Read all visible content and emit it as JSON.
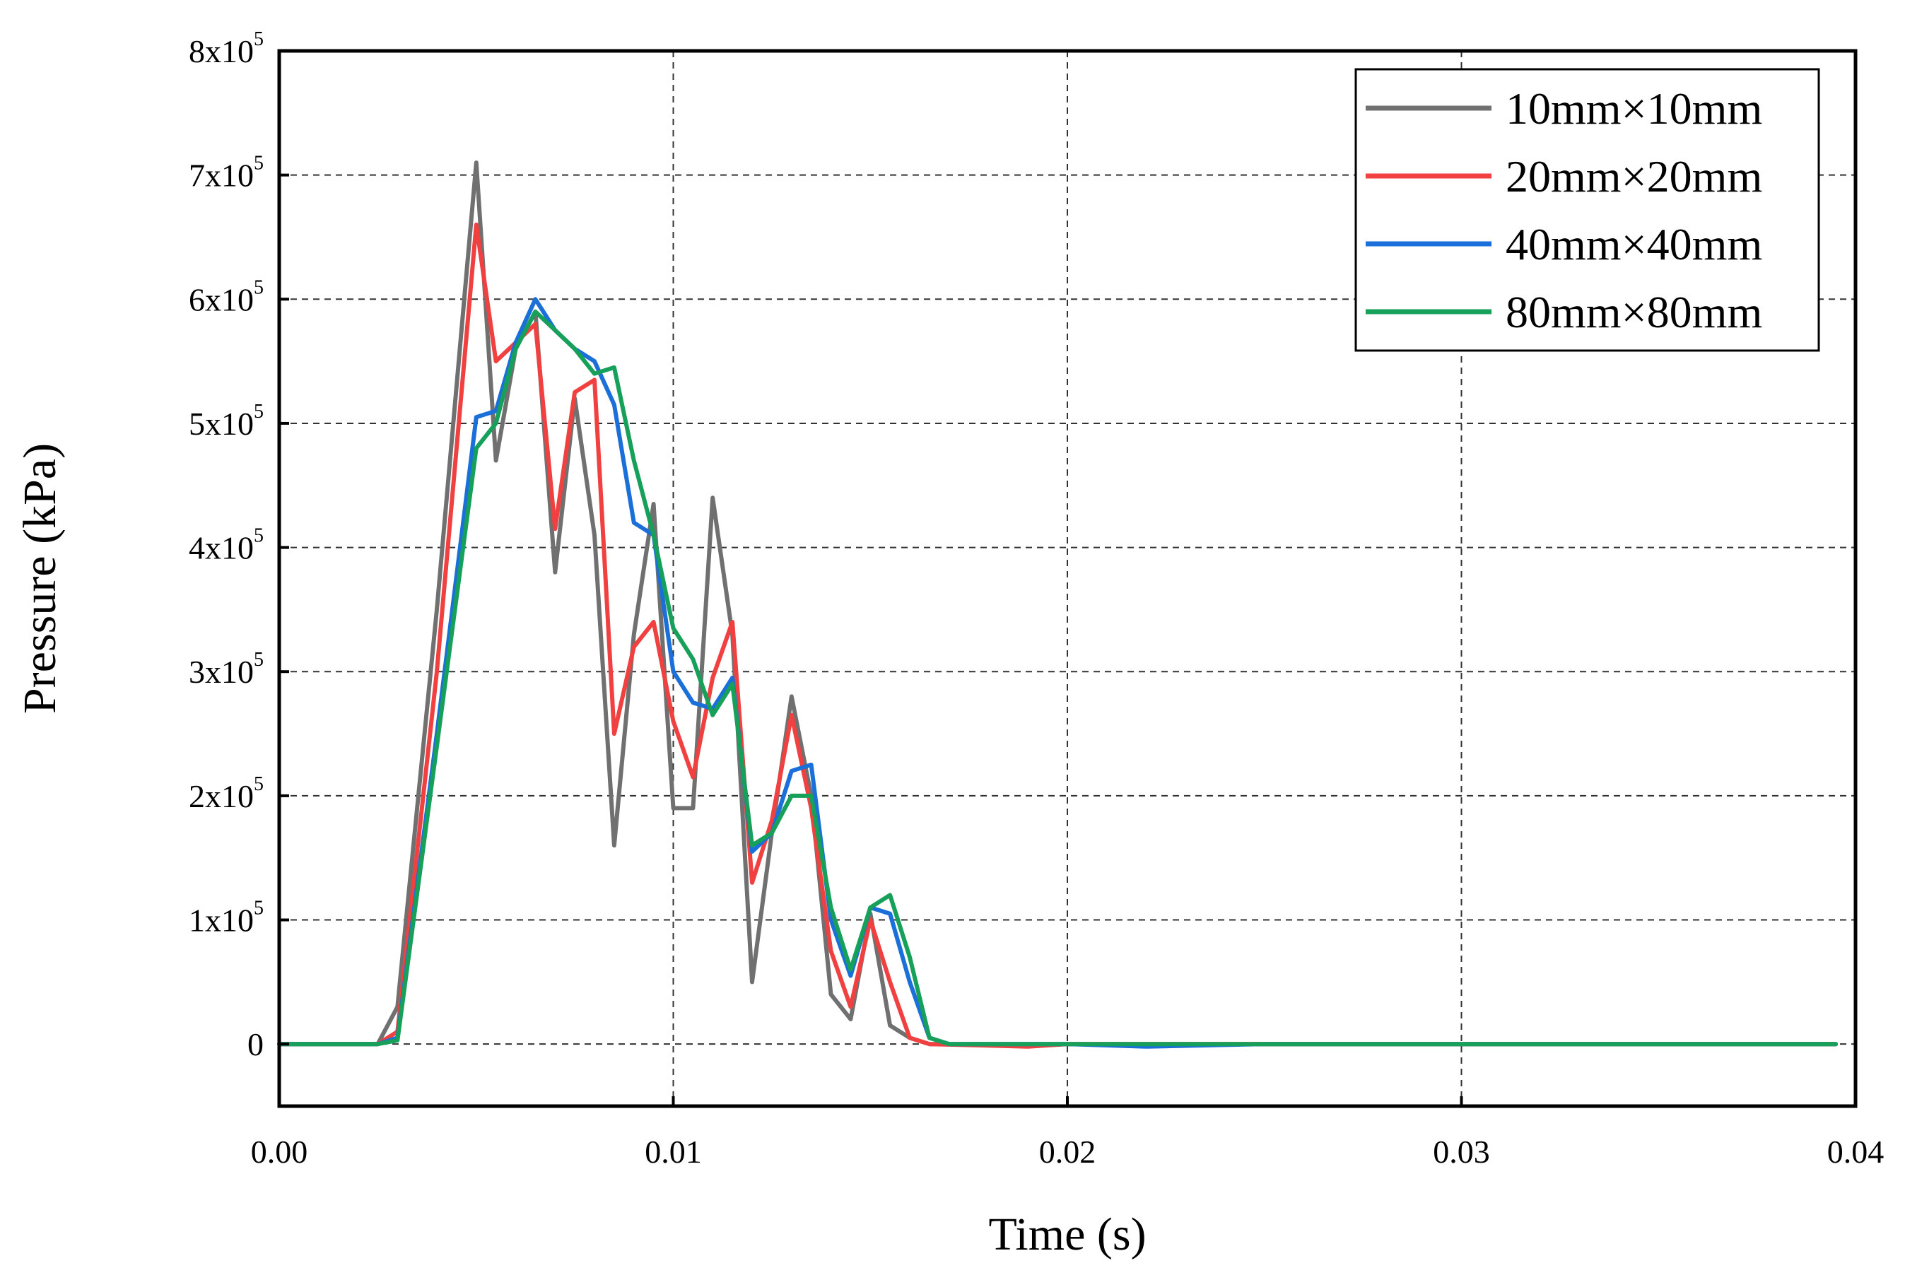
{
  "chart_data": {
    "type": "line",
    "title": "",
    "xlabel": "Time (s)",
    "ylabel": "Pressure (kPa)",
    "xlim": [
      0,
      0.04
    ],
    "ylim": [
      -50000,
      800000
    ],
    "x_ticks": [
      {
        "value": 0,
        "label": "0.00"
      },
      {
        "value": 0.01,
        "label": "0.01"
      },
      {
        "value": 0.02,
        "label": "0.02"
      },
      {
        "value": 0.03,
        "label": "0.03"
      },
      {
        "value": 0.04,
        "label": "0.04"
      }
    ],
    "y_ticks": [
      {
        "value": 0,
        "mant": "0",
        "exp": ""
      },
      {
        "value": 100000,
        "mant": "1x10",
        "exp": "5"
      },
      {
        "value": 200000,
        "mant": "2x10",
        "exp": "5"
      },
      {
        "value": 300000,
        "mant": "3x10",
        "exp": "5"
      },
      {
        "value": 400000,
        "mant": "4x10",
        "exp": "5"
      },
      {
        "value": 500000,
        "mant": "5x10",
        "exp": "5"
      },
      {
        "value": 600000,
        "mant": "6x10",
        "exp": "5"
      },
      {
        "value": 700000,
        "mant": "7x10",
        "exp": "5"
      },
      {
        "value": 800000,
        "mant": "8x10",
        "exp": "5"
      }
    ],
    "grid": true,
    "legend_position": "top-right",
    "series": [
      {
        "name": "10mm×10mm",
        "color": "#707070",
        "points": [
          [
            0,
            0
          ],
          [
            0.0025,
            0
          ],
          [
            0.003,
            30000
          ],
          [
            0.004,
            350000
          ],
          [
            0.005,
            710000
          ],
          [
            0.0055,
            470000
          ],
          [
            0.006,
            560000
          ],
          [
            0.0065,
            590000
          ],
          [
            0.007,
            380000
          ],
          [
            0.0075,
            520000
          ],
          [
            0.008,
            410000
          ],
          [
            0.0085,
            160000
          ],
          [
            0.009,
            330000
          ],
          [
            0.0095,
            435000
          ],
          [
            0.01,
            190000
          ],
          [
            0.0105,
            190000
          ],
          [
            0.011,
            440000
          ],
          [
            0.0115,
            330000
          ],
          [
            0.012,
            50000
          ],
          [
            0.0125,
            170000
          ],
          [
            0.013,
            280000
          ],
          [
            0.0135,
            200000
          ],
          [
            0.014,
            40000
          ],
          [
            0.0145,
            20000
          ],
          [
            0.015,
            105000
          ],
          [
            0.0155,
            15000
          ],
          [
            0.016,
            5000
          ],
          [
            0.0165,
            0
          ],
          [
            0.02,
            0
          ],
          [
            0.025,
            0
          ],
          [
            0.03,
            0
          ],
          [
            0.035,
            0
          ],
          [
            0.0395,
            0
          ]
        ]
      },
      {
        "name": "20mm×20mm",
        "color": "#f04040",
        "points": [
          [
            0,
            0
          ],
          [
            0.0025,
            0
          ],
          [
            0.003,
            10000
          ],
          [
            0.004,
            300000
          ],
          [
            0.005,
            660000
          ],
          [
            0.0055,
            550000
          ],
          [
            0.006,
            565000
          ],
          [
            0.0065,
            580000
          ],
          [
            0.007,
            415000
          ],
          [
            0.0075,
            525000
          ],
          [
            0.008,
            535000
          ],
          [
            0.0085,
            250000
          ],
          [
            0.009,
            320000
          ],
          [
            0.0095,
            340000
          ],
          [
            0.01,
            260000
          ],
          [
            0.0105,
            215000
          ],
          [
            0.011,
            295000
          ],
          [
            0.0115,
            340000
          ],
          [
            0.012,
            130000
          ],
          [
            0.0125,
            180000
          ],
          [
            0.013,
            265000
          ],
          [
            0.0135,
            190000
          ],
          [
            0.014,
            75000
          ],
          [
            0.0145,
            30000
          ],
          [
            0.015,
            100000
          ],
          [
            0.0155,
            50000
          ],
          [
            0.016,
            5000
          ],
          [
            0.0165,
            0
          ],
          [
            0.019,
            -2000
          ],
          [
            0.02,
            0
          ],
          [
            0.025,
            0
          ],
          [
            0.03,
            0
          ],
          [
            0.035,
            0
          ],
          [
            0.0395,
            0
          ]
        ]
      },
      {
        "name": "40mm×40mm",
        "color": "#1a6fd9",
        "points": [
          [
            0,
            0
          ],
          [
            0.0025,
            0
          ],
          [
            0.003,
            5000
          ],
          [
            0.004,
            250000
          ],
          [
            0.005,
            505000
          ],
          [
            0.0055,
            510000
          ],
          [
            0.006,
            565000
          ],
          [
            0.0065,
            600000
          ],
          [
            0.007,
            575000
          ],
          [
            0.0075,
            560000
          ],
          [
            0.008,
            550000
          ],
          [
            0.0085,
            515000
          ],
          [
            0.009,
            420000
          ],
          [
            0.0095,
            410000
          ],
          [
            0.01,
            300000
          ],
          [
            0.0105,
            275000
          ],
          [
            0.011,
            270000
          ],
          [
            0.0115,
            295000
          ],
          [
            0.012,
            155000
          ],
          [
            0.0125,
            170000
          ],
          [
            0.013,
            220000
          ],
          [
            0.0135,
            225000
          ],
          [
            0.014,
            100000
          ],
          [
            0.0145,
            55000
          ],
          [
            0.015,
            110000
          ],
          [
            0.0155,
            105000
          ],
          [
            0.016,
            50000
          ],
          [
            0.0165,
            5000
          ],
          [
            0.017,
            0
          ],
          [
            0.02,
            0
          ],
          [
            0.022,
            -2000
          ],
          [
            0.025,
            0
          ],
          [
            0.03,
            0
          ],
          [
            0.035,
            0
          ],
          [
            0.0395,
            0
          ]
        ]
      },
      {
        "name": "80mm×80mm",
        "color": "#16a05a",
        "points": [
          [
            0,
            0
          ],
          [
            0.0025,
            0
          ],
          [
            0.003,
            3000
          ],
          [
            0.004,
            240000
          ],
          [
            0.005,
            480000
          ],
          [
            0.0055,
            500000
          ],
          [
            0.006,
            560000
          ],
          [
            0.0065,
            590000
          ],
          [
            0.007,
            575000
          ],
          [
            0.0075,
            560000
          ],
          [
            0.008,
            540000
          ],
          [
            0.0085,
            545000
          ],
          [
            0.009,
            470000
          ],
          [
            0.0095,
            410000
          ],
          [
            0.01,
            335000
          ],
          [
            0.0105,
            310000
          ],
          [
            0.011,
            265000
          ],
          [
            0.0115,
            290000
          ],
          [
            0.012,
            160000
          ],
          [
            0.0125,
            170000
          ],
          [
            0.013,
            200000
          ],
          [
            0.0135,
            200000
          ],
          [
            0.014,
            110000
          ],
          [
            0.0145,
            60000
          ],
          [
            0.015,
            110000
          ],
          [
            0.0155,
            120000
          ],
          [
            0.016,
            70000
          ],
          [
            0.0165,
            5000
          ],
          [
            0.017,
            0
          ],
          [
            0.02,
            0
          ],
          [
            0.025,
            0
          ],
          [
            0.03,
            0
          ],
          [
            0.035,
            0
          ],
          [
            0.0395,
            0
          ]
        ]
      }
    ]
  }
}
